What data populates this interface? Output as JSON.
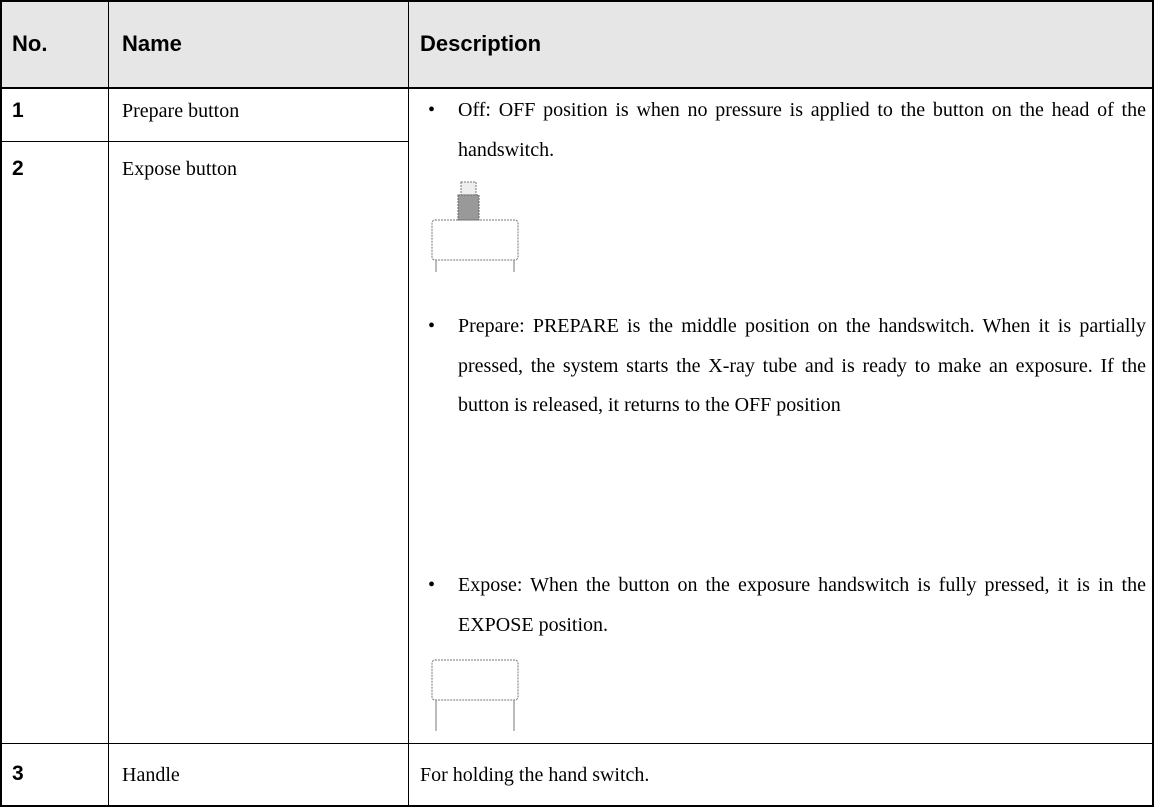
{
  "table": {
    "headers": [
      "No.",
      "Name",
      "Description"
    ],
    "rows": [
      {
        "no": "1",
        "name": "Prepare button"
      },
      {
        "no": "2",
        "name": "Expose button"
      },
      {
        "no": "3",
        "name": "Handle",
        "description": "For holding the hand switch."
      }
    ],
    "description_items": [
      "Off: OFF position is when no pressure is applied to the button on the head of the handswitch.",
      "Prepare: PREPARE is the middle position on the handswitch. When it is partially pressed, the system starts the X-ray tube and is ready to make an exposure. If the button is released, it returns to the OFF position",
      "Expose: When the button on the exposure handswitch is fully pressed, it is in the EXPOSE position."
    ]
  }
}
